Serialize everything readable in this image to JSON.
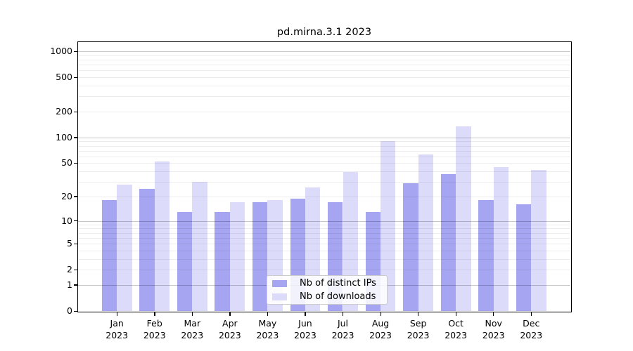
{
  "title": "pd.mirna.3.1 2023",
  "chart_data": {
    "type": "bar",
    "title": "pd.mirna.3.1 2023",
    "months": [
      "Jan",
      "Feb",
      "Mar",
      "Apr",
      "May",
      "Jun",
      "Jul",
      "Aug",
      "Sep",
      "Oct",
      "Nov",
      "Dec"
    ],
    "year": "2023",
    "categories": [
      "Jan 2023",
      "Feb 2023",
      "Mar 2023",
      "Apr 2023",
      "May 2023",
      "Jun 2023",
      "Jul 2023",
      "Aug 2023",
      "Sep 2023",
      "Oct 2023",
      "Nov 2023",
      "Dec 2023"
    ],
    "series": [
      {
        "name": "Nb of distinct IPs",
        "color": "#a5a5f2",
        "values": [
          18,
          25,
          13,
          13,
          17,
          19,
          17,
          13,
          29,
          37,
          18,
          16
        ]
      },
      {
        "name": "Nb of downloads",
        "color": "#dcdcfa",
        "values": [
          28,
          52,
          30,
          17,
          18,
          26,
          39,
          91,
          63,
          135,
          45,
          42
        ]
      }
    ],
    "yscale": "log1p",
    "y_ticks": [
      0,
      1,
      2,
      5,
      10,
      20,
      50,
      100,
      200,
      500,
      1000
    ],
    "ylim": [
      0,
      1275
    ],
    "xlabel": "",
    "ylabel": "",
    "grid": true,
    "legend_position": "lower center"
  },
  "legend": {
    "items": [
      {
        "label": "Nb of distinct IPs",
        "color": "#a5a5f2"
      },
      {
        "label": "Nb of downloads",
        "color": "#dcdcfa"
      }
    ]
  }
}
